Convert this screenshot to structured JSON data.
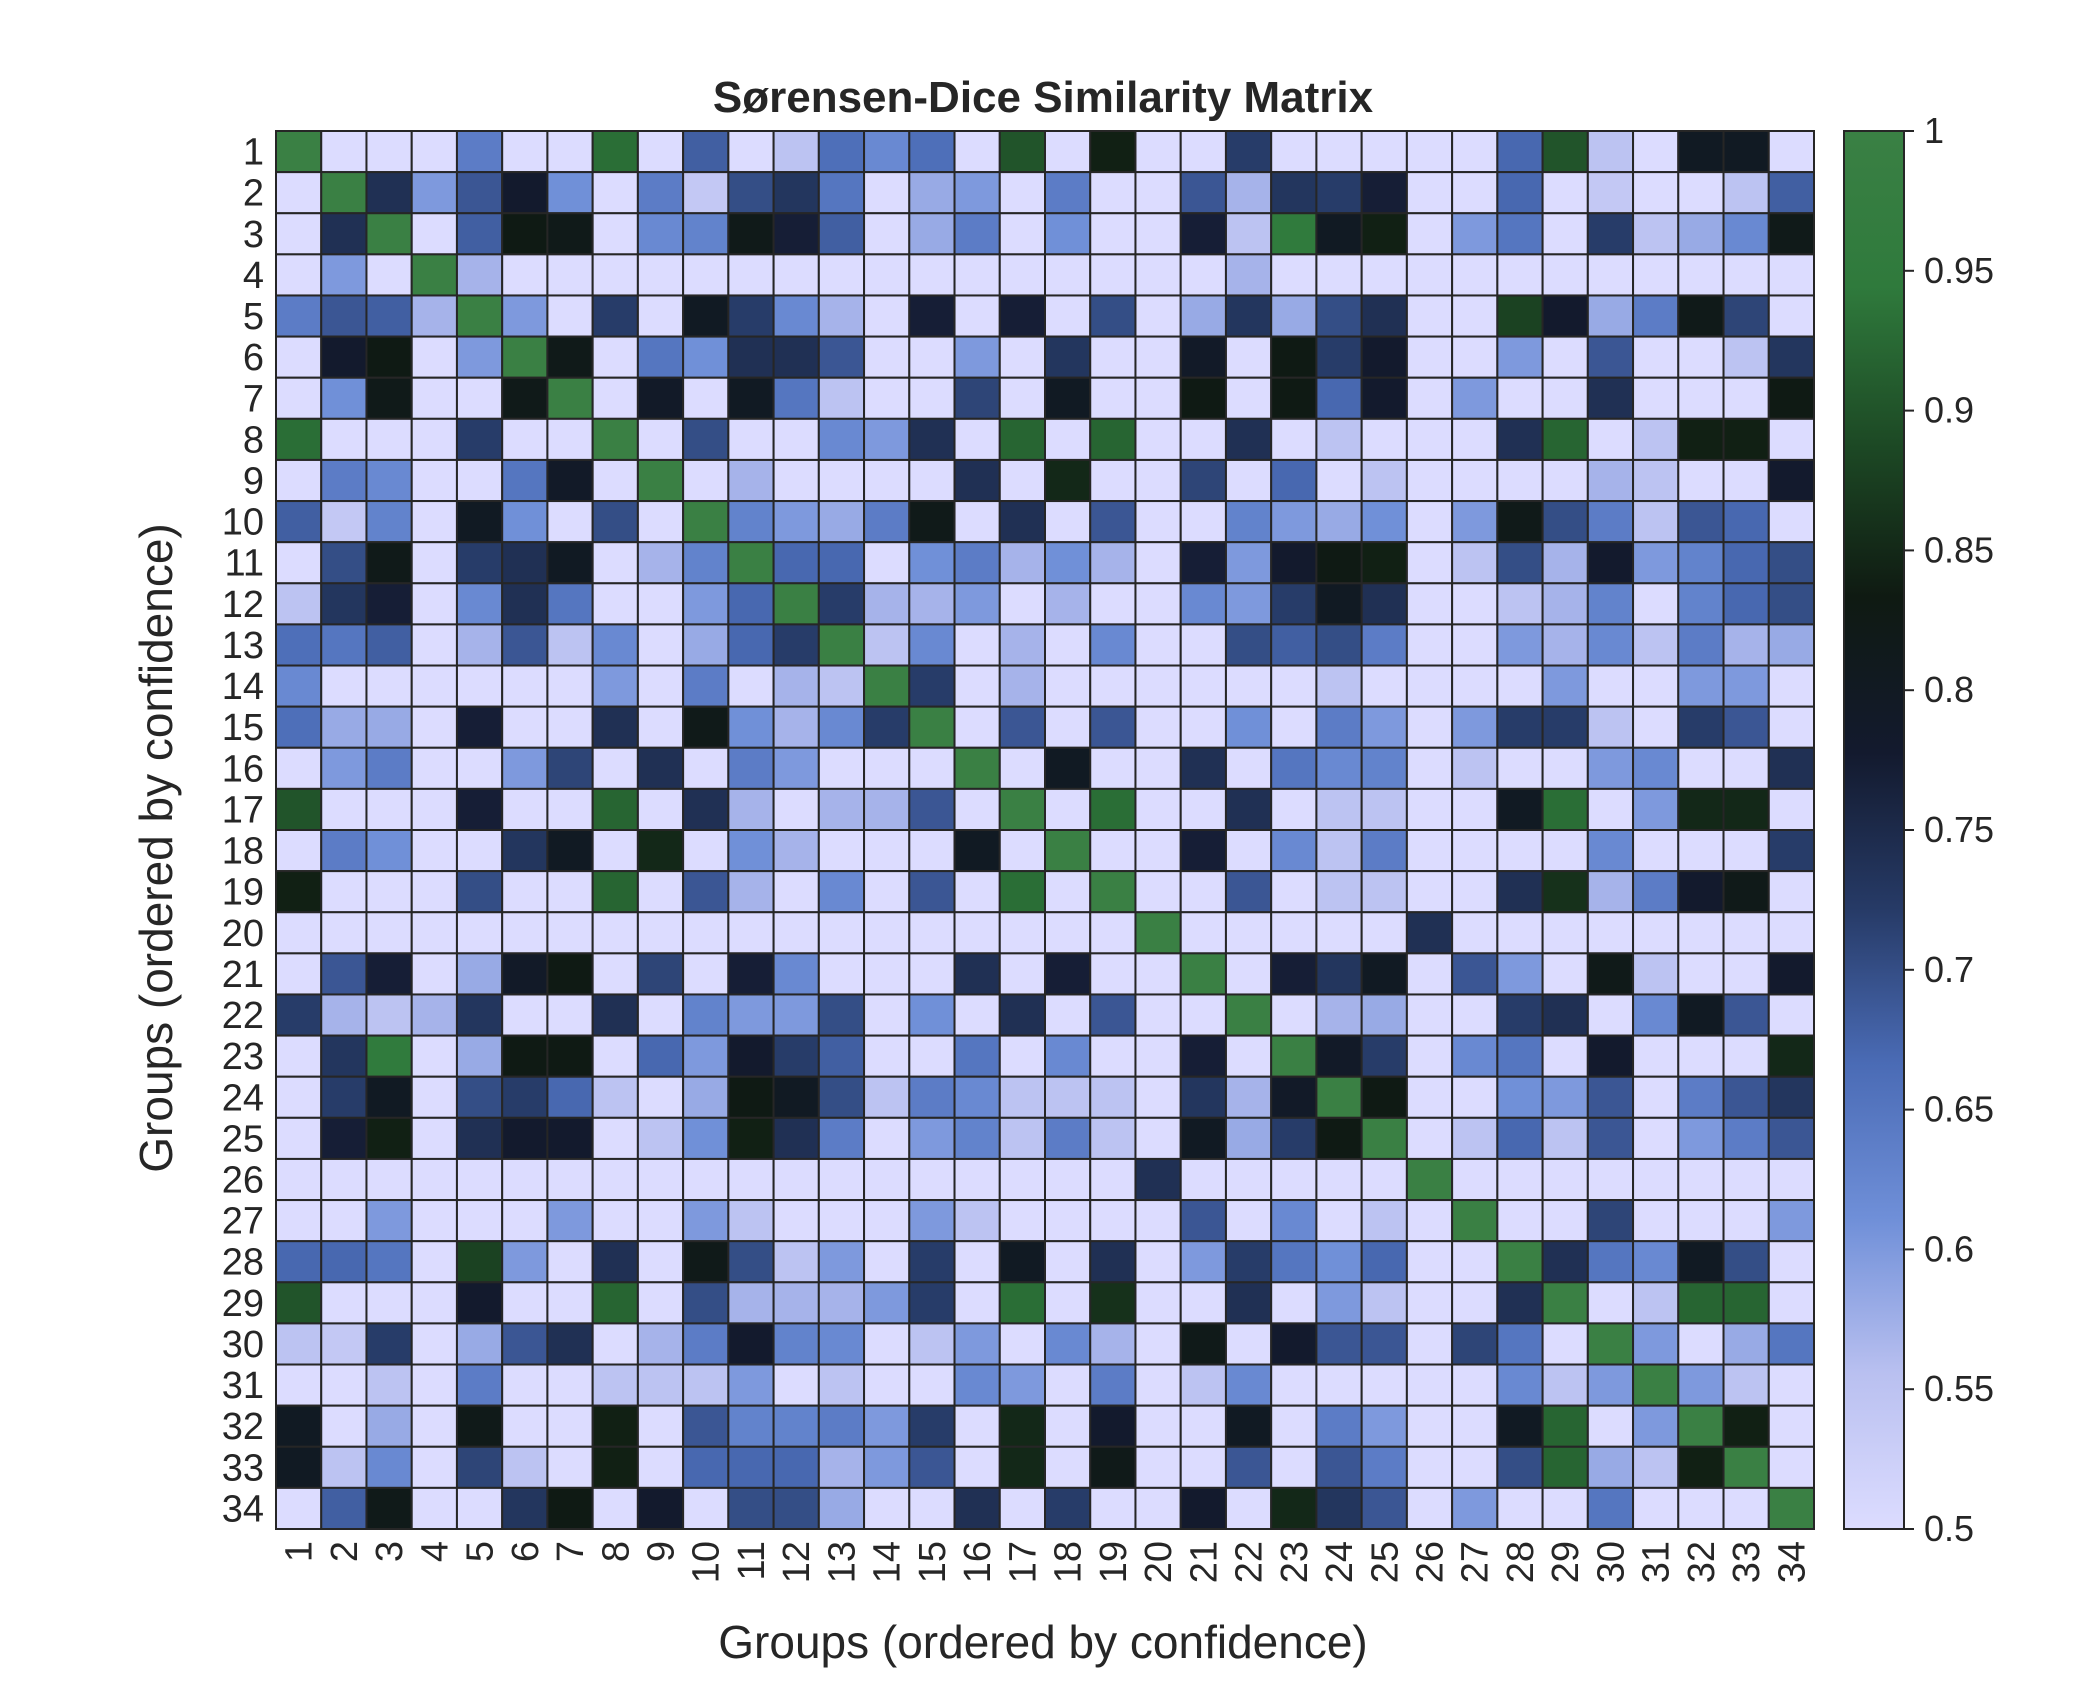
{
  "chart_data": {
    "type": "heatmap",
    "title": "Sørensen-Dice Similarity Matrix",
    "xlabel": "Groups (ordered by confidence)",
    "ylabel": "Groups (ordered by confidence)",
    "x_categories": [
      "1",
      "2",
      "3",
      "4",
      "5",
      "6",
      "7",
      "8",
      "9",
      "10",
      "11",
      "12",
      "13",
      "14",
      "15",
      "16",
      "17",
      "18",
      "19",
      "20",
      "21",
      "22",
      "23",
      "24",
      "25",
      "26",
      "27",
      "28",
      "29",
      "30",
      "31",
      "32",
      "33",
      "34"
    ],
    "y_categories": [
      "1",
      "2",
      "3",
      "4",
      "5",
      "6",
      "7",
      "8",
      "9",
      "10",
      "11",
      "12",
      "13",
      "14",
      "15",
      "16",
      "17",
      "18",
      "19",
      "20",
      "21",
      "22",
      "23",
      "24",
      "25",
      "26",
      "27",
      "28",
      "29",
      "30",
      "31",
      "32",
      "33",
      "34"
    ],
    "value_range": [
      0.5,
      1
    ],
    "colorbar_ticks": [
      "0.5",
      "0.55",
      "0.6",
      "0.65",
      "0.7",
      "0.75",
      "0.8",
      "0.85",
      "0.9",
      "0.95",
      "1"
    ],
    "colormap": [
      "#dcdcff",
      "#b9c0f0",
      "#6f8fd8",
      "#4a6bb5",
      "#263a66",
      "#131a2e",
      "#0f1a12",
      "#1d4a25",
      "#2f7a3c",
      "#3a8044"
    ],
    "values": [
      [
        1.0,
        0.5,
        0.5,
        0.5,
        0.64,
        0.5,
        0.5,
        0.93,
        0.5,
        0.68,
        0.5,
        0.55,
        0.66,
        0.62,
        0.66,
        0.5,
        0.9,
        0.5,
        0.84,
        0.5,
        0.5,
        0.72,
        0.5,
        0.5,
        0.5,
        0.5,
        0.5,
        0.67,
        0.9,
        0.55,
        0.5,
        0.8,
        0.8,
        0.5
      ],
      [
        0.5,
        1.0,
        0.74,
        0.6,
        0.69,
        0.78,
        0.61,
        0.5,
        0.64,
        0.54,
        0.7,
        0.73,
        0.65,
        0.5,
        0.58,
        0.6,
        0.5,
        0.64,
        0.5,
        0.5,
        0.69,
        0.57,
        0.73,
        0.72,
        0.77,
        0.5,
        0.5,
        0.67,
        0.5,
        0.54,
        0.5,
        0.5,
        0.55,
        0.68
      ],
      [
        0.5,
        0.74,
        1.0,
        0.5,
        0.68,
        0.83,
        0.82,
        0.5,
        0.62,
        0.63,
        0.82,
        0.77,
        0.68,
        0.5,
        0.58,
        0.64,
        0.5,
        0.61,
        0.5,
        0.5,
        0.77,
        0.55,
        0.95,
        0.8,
        0.84,
        0.5,
        0.6,
        0.65,
        0.5,
        0.72,
        0.55,
        0.58,
        0.62,
        0.82
      ],
      [
        0.5,
        0.6,
        0.5,
        1.0,
        0.57,
        0.5,
        0.5,
        0.5,
        0.5,
        0.5,
        0.5,
        0.5,
        0.5,
        0.5,
        0.5,
        0.5,
        0.5,
        0.5,
        0.5,
        0.5,
        0.5,
        0.57,
        0.5,
        0.5,
        0.5,
        0.5,
        0.5,
        0.5,
        0.5,
        0.5,
        0.5,
        0.5,
        0.5,
        0.5
      ],
      [
        0.64,
        0.69,
        0.68,
        0.57,
        1.0,
        0.6,
        0.5,
        0.72,
        0.5,
        0.8,
        0.72,
        0.62,
        0.57,
        0.5,
        0.77,
        0.5,
        0.77,
        0.5,
        0.7,
        0.5,
        0.58,
        0.73,
        0.58,
        0.7,
        0.74,
        0.5,
        0.5,
        0.88,
        0.78,
        0.58,
        0.64,
        0.82,
        0.71,
        0.5
      ],
      [
        0.5,
        0.78,
        0.83,
        0.5,
        0.6,
        1.0,
        0.82,
        0.5,
        0.65,
        0.61,
        0.74,
        0.74,
        0.69,
        0.5,
        0.5,
        0.6,
        0.5,
        0.73,
        0.5,
        0.5,
        0.79,
        0.5,
        0.83,
        0.72,
        0.78,
        0.5,
        0.5,
        0.6,
        0.5,
        0.69,
        0.5,
        0.5,
        0.55,
        0.73
      ],
      [
        0.5,
        0.61,
        0.82,
        0.5,
        0.5,
        0.82,
        1.0,
        0.5,
        0.79,
        0.5,
        0.8,
        0.65,
        0.55,
        0.5,
        0.5,
        0.71,
        0.5,
        0.8,
        0.5,
        0.5,
        0.83,
        0.5,
        0.83,
        0.67,
        0.78,
        0.5,
        0.6,
        0.5,
        0.5,
        0.74,
        0.5,
        0.5,
        0.5,
        0.83
      ],
      [
        0.93,
        0.5,
        0.5,
        0.5,
        0.72,
        0.5,
        0.5,
        1.0,
        0.5,
        0.7,
        0.5,
        0.5,
        0.62,
        0.6,
        0.74,
        0.5,
        0.92,
        0.5,
        0.92,
        0.5,
        0.5,
        0.74,
        0.5,
        0.55,
        0.5,
        0.5,
        0.5,
        0.74,
        0.92,
        0.5,
        0.55,
        0.84,
        0.84,
        0.5
      ],
      [
        0.5,
        0.64,
        0.62,
        0.5,
        0.5,
        0.65,
        0.79,
        0.5,
        1.0,
        0.5,
        0.57,
        0.5,
        0.5,
        0.5,
        0.5,
        0.74,
        0.5,
        0.85,
        0.5,
        0.5,
        0.71,
        0.5,
        0.67,
        0.5,
        0.55,
        0.5,
        0.5,
        0.5,
        0.5,
        0.57,
        0.55,
        0.5,
        0.5,
        0.78
      ],
      [
        0.68,
        0.54,
        0.63,
        0.5,
        0.8,
        0.61,
        0.5,
        0.7,
        0.5,
        1.0,
        0.63,
        0.6,
        0.58,
        0.64,
        0.82,
        0.5,
        0.74,
        0.5,
        0.69,
        0.5,
        0.5,
        0.63,
        0.6,
        0.58,
        0.61,
        0.5,
        0.6,
        0.82,
        0.7,
        0.64,
        0.55,
        0.69,
        0.67,
        0.5
      ],
      [
        0.5,
        0.7,
        0.82,
        0.5,
        0.72,
        0.74,
        0.8,
        0.5,
        0.57,
        0.63,
        1.0,
        0.67,
        0.67,
        0.5,
        0.61,
        0.64,
        0.57,
        0.61,
        0.57,
        0.5,
        0.77,
        0.6,
        0.78,
        0.83,
        0.84,
        0.5,
        0.55,
        0.7,
        0.57,
        0.78,
        0.6,
        0.63,
        0.67,
        0.7
      ],
      [
        0.55,
        0.73,
        0.77,
        0.5,
        0.62,
        0.74,
        0.65,
        0.5,
        0.5,
        0.6,
        0.67,
        1.0,
        0.72,
        0.57,
        0.57,
        0.6,
        0.5,
        0.57,
        0.5,
        0.5,
        0.62,
        0.6,
        0.72,
        0.8,
        0.74,
        0.5,
        0.5,
        0.55,
        0.57,
        0.63,
        0.5,
        0.63,
        0.67,
        0.7
      ],
      [
        0.66,
        0.65,
        0.68,
        0.5,
        0.57,
        0.69,
        0.55,
        0.62,
        0.5,
        0.58,
        0.67,
        0.72,
        1.0,
        0.55,
        0.62,
        0.5,
        0.57,
        0.5,
        0.62,
        0.5,
        0.5,
        0.7,
        0.68,
        0.7,
        0.64,
        0.5,
        0.5,
        0.6,
        0.57,
        0.62,
        0.55,
        0.64,
        0.57,
        0.58
      ],
      [
        0.62,
        0.5,
        0.5,
        0.5,
        0.5,
        0.5,
        0.5,
        0.6,
        0.5,
        0.64,
        0.5,
        0.57,
        0.55,
        1.0,
        0.72,
        0.5,
        0.57,
        0.5,
        0.5,
        0.5,
        0.5,
        0.5,
        0.5,
        0.55,
        0.5,
        0.5,
        0.5,
        0.5,
        0.6,
        0.5,
        0.5,
        0.6,
        0.6,
        0.5
      ],
      [
        0.66,
        0.58,
        0.58,
        0.5,
        0.77,
        0.5,
        0.5,
        0.74,
        0.5,
        0.82,
        0.61,
        0.57,
        0.62,
        0.72,
        1.0,
        0.5,
        0.69,
        0.5,
        0.69,
        0.5,
        0.5,
        0.61,
        0.5,
        0.64,
        0.6,
        0.5,
        0.6,
        0.72,
        0.72,
        0.55,
        0.5,
        0.72,
        0.69,
        0.5
      ],
      [
        0.5,
        0.6,
        0.64,
        0.5,
        0.5,
        0.6,
        0.71,
        0.5,
        0.74,
        0.5,
        0.64,
        0.6,
        0.5,
        0.5,
        0.5,
        1.0,
        0.5,
        0.8,
        0.5,
        0.5,
        0.74,
        0.5,
        0.65,
        0.62,
        0.63,
        0.5,
        0.55,
        0.5,
        0.5,
        0.6,
        0.62,
        0.5,
        0.5,
        0.74
      ],
      [
        0.9,
        0.5,
        0.5,
        0.5,
        0.77,
        0.5,
        0.5,
        0.92,
        0.5,
        0.74,
        0.57,
        0.5,
        0.57,
        0.57,
        0.69,
        0.5,
        1.0,
        0.5,
        0.93,
        0.5,
        0.5,
        0.74,
        0.5,
        0.55,
        0.55,
        0.5,
        0.5,
        0.8,
        0.93,
        0.5,
        0.6,
        0.85,
        0.85,
        0.5
      ],
      [
        0.5,
        0.64,
        0.61,
        0.5,
        0.5,
        0.73,
        0.8,
        0.5,
        0.85,
        0.5,
        0.61,
        0.57,
        0.5,
        0.5,
        0.5,
        0.8,
        0.5,
        1.0,
        0.5,
        0.5,
        0.77,
        0.5,
        0.62,
        0.55,
        0.64,
        0.5,
        0.5,
        0.5,
        0.5,
        0.62,
        0.5,
        0.5,
        0.5,
        0.72
      ],
      [
        0.84,
        0.5,
        0.5,
        0.5,
        0.7,
        0.5,
        0.5,
        0.92,
        0.5,
        0.69,
        0.57,
        0.5,
        0.62,
        0.5,
        0.69,
        0.5,
        0.93,
        0.5,
        1.0,
        0.5,
        0.5,
        0.69,
        0.5,
        0.55,
        0.55,
        0.5,
        0.5,
        0.74,
        0.86,
        0.57,
        0.64,
        0.78,
        0.82,
        0.5
      ],
      [
        0.5,
        0.5,
        0.5,
        0.5,
        0.5,
        0.5,
        0.5,
        0.5,
        0.5,
        0.5,
        0.5,
        0.5,
        0.5,
        0.5,
        0.5,
        0.5,
        0.5,
        0.5,
        0.5,
        1.0,
        0.5,
        0.5,
        0.5,
        0.5,
        0.5,
        0.74,
        0.5,
        0.5,
        0.5,
        0.5,
        0.5,
        0.5,
        0.5,
        0.5
      ],
      [
        0.5,
        0.69,
        0.77,
        0.5,
        0.58,
        0.79,
        0.83,
        0.5,
        0.71,
        0.5,
        0.77,
        0.62,
        0.5,
        0.5,
        0.5,
        0.74,
        0.5,
        0.77,
        0.5,
        0.5,
        1.0,
        0.5,
        0.77,
        0.73,
        0.8,
        0.5,
        0.69,
        0.6,
        0.5,
        0.82,
        0.55,
        0.5,
        0.5,
        0.78
      ],
      [
        0.72,
        0.57,
        0.55,
        0.57,
        0.73,
        0.5,
        0.5,
        0.74,
        0.5,
        0.63,
        0.6,
        0.6,
        0.7,
        0.5,
        0.61,
        0.5,
        0.74,
        0.5,
        0.69,
        0.5,
        0.5,
        1.0,
        0.5,
        0.57,
        0.58,
        0.5,
        0.5,
        0.72,
        0.74,
        0.5,
        0.62,
        0.8,
        0.69,
        0.5
      ],
      [
        0.5,
        0.73,
        0.95,
        0.5,
        0.58,
        0.83,
        0.83,
        0.5,
        0.67,
        0.6,
        0.78,
        0.72,
        0.68,
        0.5,
        0.5,
        0.65,
        0.5,
        0.62,
        0.5,
        0.5,
        0.77,
        0.5,
        1.0,
        0.79,
        0.72,
        0.5,
        0.62,
        0.65,
        0.5,
        0.78,
        0.5,
        0.5,
        0.5,
        0.85
      ],
      [
        0.5,
        0.72,
        0.8,
        0.5,
        0.7,
        0.72,
        0.67,
        0.55,
        0.5,
        0.58,
        0.83,
        0.8,
        0.7,
        0.55,
        0.64,
        0.62,
        0.55,
        0.55,
        0.55,
        0.5,
        0.73,
        0.57,
        0.79,
        1.0,
        0.83,
        0.5,
        0.5,
        0.61,
        0.6,
        0.69,
        0.5,
        0.64,
        0.69,
        0.73
      ],
      [
        0.5,
        0.77,
        0.84,
        0.5,
        0.74,
        0.78,
        0.78,
        0.5,
        0.55,
        0.61,
        0.84,
        0.74,
        0.64,
        0.5,
        0.6,
        0.63,
        0.55,
        0.64,
        0.55,
        0.5,
        0.8,
        0.58,
        0.72,
        0.83,
        1.0,
        0.5,
        0.55,
        0.67,
        0.55,
        0.69,
        0.5,
        0.6,
        0.64,
        0.69
      ],
      [
        0.5,
        0.5,
        0.5,
        0.5,
        0.5,
        0.5,
        0.5,
        0.5,
        0.5,
        0.5,
        0.5,
        0.5,
        0.5,
        0.5,
        0.5,
        0.5,
        0.5,
        0.5,
        0.5,
        0.74,
        0.5,
        0.5,
        0.5,
        0.5,
        0.5,
        1.0,
        0.5,
        0.5,
        0.5,
        0.5,
        0.5,
        0.5,
        0.5,
        0.5
      ],
      [
        0.5,
        0.5,
        0.6,
        0.5,
        0.5,
        0.5,
        0.6,
        0.5,
        0.5,
        0.6,
        0.55,
        0.5,
        0.5,
        0.5,
        0.6,
        0.55,
        0.5,
        0.5,
        0.5,
        0.5,
        0.69,
        0.5,
        0.62,
        0.5,
        0.55,
        0.5,
        1.0,
        0.5,
        0.5,
        0.71,
        0.5,
        0.5,
        0.5,
        0.6
      ],
      [
        0.67,
        0.67,
        0.65,
        0.5,
        0.88,
        0.6,
        0.5,
        0.74,
        0.5,
        0.82,
        0.7,
        0.55,
        0.6,
        0.5,
        0.72,
        0.5,
        0.8,
        0.5,
        0.74,
        0.5,
        0.6,
        0.72,
        0.65,
        0.61,
        0.67,
        0.5,
        0.5,
        1.0,
        0.74,
        0.65,
        0.62,
        0.8,
        0.7,
        0.5
      ],
      [
        0.9,
        0.5,
        0.5,
        0.5,
        0.78,
        0.5,
        0.5,
        0.92,
        0.5,
        0.7,
        0.57,
        0.57,
        0.57,
        0.6,
        0.72,
        0.5,
        0.93,
        0.5,
        0.86,
        0.5,
        0.5,
        0.74,
        0.5,
        0.6,
        0.55,
        0.5,
        0.5,
        0.74,
        1.0,
        0.5,
        0.55,
        0.92,
        0.92,
        0.5
      ],
      [
        0.55,
        0.54,
        0.72,
        0.5,
        0.58,
        0.69,
        0.74,
        0.5,
        0.57,
        0.64,
        0.78,
        0.63,
        0.62,
        0.5,
        0.55,
        0.6,
        0.5,
        0.62,
        0.57,
        0.5,
        0.82,
        0.5,
        0.78,
        0.69,
        0.69,
        0.5,
        0.71,
        0.65,
        0.5,
        1.0,
        0.6,
        0.5,
        0.58,
        0.65
      ],
      [
        0.5,
        0.5,
        0.55,
        0.5,
        0.64,
        0.5,
        0.5,
        0.55,
        0.55,
        0.55,
        0.6,
        0.5,
        0.55,
        0.5,
        0.5,
        0.62,
        0.6,
        0.5,
        0.64,
        0.5,
        0.55,
        0.62,
        0.5,
        0.5,
        0.5,
        0.5,
        0.5,
        0.62,
        0.55,
        0.6,
        1.0,
        0.6,
        0.55,
        0.5
      ],
      [
        0.8,
        0.5,
        0.58,
        0.5,
        0.82,
        0.5,
        0.5,
        0.84,
        0.5,
        0.69,
        0.63,
        0.63,
        0.64,
        0.6,
        0.72,
        0.5,
        0.85,
        0.5,
        0.78,
        0.5,
        0.5,
        0.8,
        0.5,
        0.64,
        0.6,
        0.5,
        0.5,
        0.8,
        0.92,
        0.5,
        0.6,
        1.0,
        0.84,
        0.5
      ],
      [
        0.8,
        0.55,
        0.62,
        0.5,
        0.71,
        0.55,
        0.5,
        0.84,
        0.5,
        0.67,
        0.67,
        0.67,
        0.57,
        0.6,
        0.69,
        0.5,
        0.85,
        0.5,
        0.82,
        0.5,
        0.5,
        0.69,
        0.5,
        0.69,
        0.64,
        0.5,
        0.5,
        0.7,
        0.92,
        0.58,
        0.55,
        0.84,
        1.0,
        0.5
      ],
      [
        0.5,
        0.68,
        0.82,
        0.5,
        0.5,
        0.73,
        0.83,
        0.5,
        0.78,
        0.5,
        0.7,
        0.7,
        0.58,
        0.5,
        0.5,
        0.74,
        0.5,
        0.72,
        0.5,
        0.5,
        0.78,
        0.5,
        0.85,
        0.73,
        0.69,
        0.5,
        0.6,
        0.5,
        0.5,
        0.65,
        0.5,
        0.5,
        0.5,
        1.0
      ]
    ]
  }
}
